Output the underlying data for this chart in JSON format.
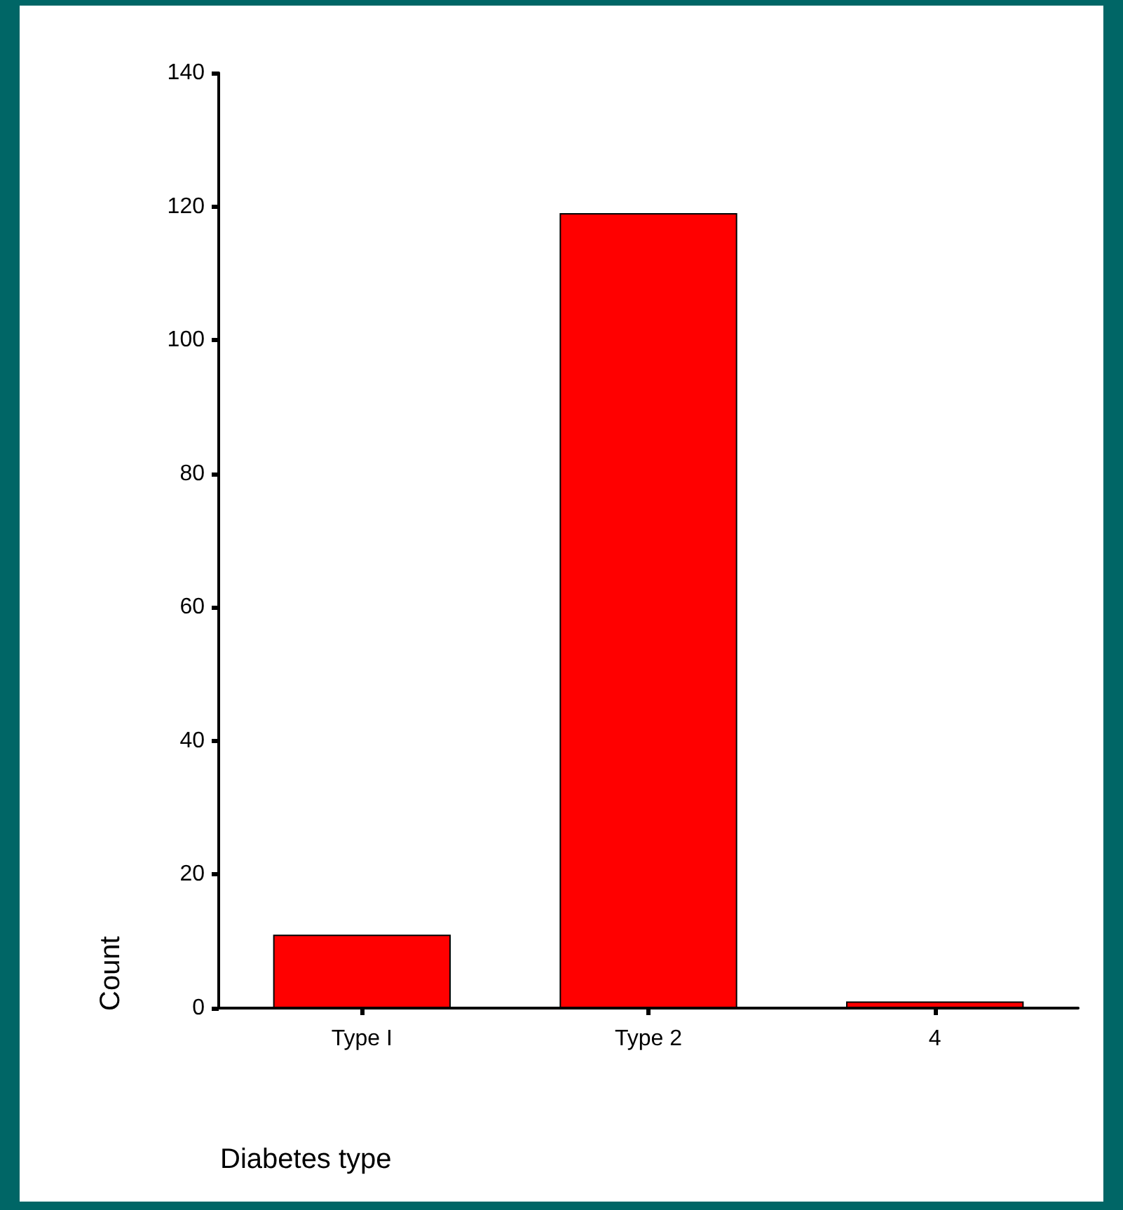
{
  "chart_data": {
    "type": "bar",
    "xlabel": "Diabetes type",
    "ylabel": "Count",
    "categories": [
      "Type I",
      "Type 2",
      "4"
    ],
    "values": [
      11,
      119,
      1
    ],
    "color": "#ff0000",
    "ylim": [
      0,
      140
    ],
    "yticks": [
      0,
      20,
      40,
      60,
      80,
      100,
      120,
      140
    ],
    "grid": false
  }
}
